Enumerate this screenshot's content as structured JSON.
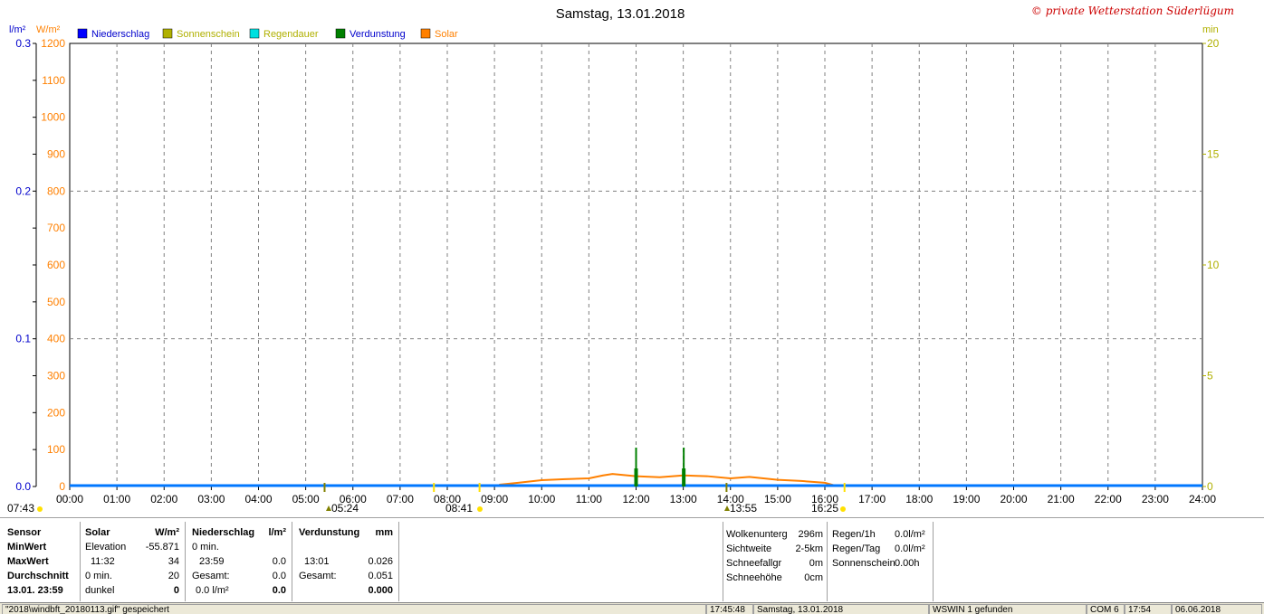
{
  "title": "Samstag, 13.01.2018",
  "watermark": "© private Wetterstation Süderlügum",
  "legend": [
    {
      "label": "Niederschlag",
      "color": "#0000ff",
      "text_color": "#0000cc"
    },
    {
      "label": "Sonnenschein",
      "color": "#b0b000",
      "text_color": "#b0b000"
    },
    {
      "label": "Regendauer",
      "color": "#00e0e0",
      "text_color": "#b0b000"
    },
    {
      "label": "Verdunstung",
      "color": "#008000",
      "text_color": "#0000cc"
    },
    {
      "label": "Solar",
      "color": "#ff8000",
      "text_color": "#ff8000"
    }
  ],
  "chart_data": {
    "type": "line",
    "x_unit": "time",
    "x_ticks": [
      "00:00",
      "01:00",
      "02:00",
      "03:00",
      "04:00",
      "05:00",
      "06:00",
      "07:00",
      "08:00",
      "09:00",
      "10:00",
      "11:00",
      "12:00",
      "13:00",
      "14:00",
      "15:00",
      "16:00",
      "17:00",
      "18:00",
      "19:00",
      "20:00",
      "21:00",
      "22:00",
      "23:00",
      "24:00"
    ],
    "axes": {
      "left_rain": {
        "unit": "l/m²",
        "ticks": [
          "0.0",
          "0.1",
          "0.2",
          "0.3"
        ],
        "range": [
          0,
          0.3
        ]
      },
      "left_solar": {
        "unit": "W/m²",
        "ticks": [
          "0",
          "100",
          "200",
          "300",
          "400",
          "500",
          "600",
          "700",
          "800",
          "900",
          "1000",
          "1100",
          "1200"
        ],
        "range": [
          0,
          1200
        ]
      },
      "right_minutes": {
        "unit": "min",
        "ticks": [
          "0",
          "5",
          "10",
          "15",
          "20"
        ],
        "range": [
          0,
          20
        ]
      }
    },
    "series": [
      {
        "name": "Solar",
        "color": "#ff8000",
        "x": [
          9.1,
          9.5,
          10.0,
          10.5,
          11.0,
          11.3,
          11.5,
          12.0,
          12.5,
          13.0,
          13.5,
          14.0,
          14.4,
          15.0,
          15.5,
          16.0,
          16.2
        ],
        "y": [
          5,
          10,
          17,
          20,
          22,
          30,
          34,
          28,
          25,
          30,
          28,
          22,
          26,
          18,
          15,
          10,
          3
        ]
      },
      {
        "name": "Niederschlag",
        "color": "#0077ff",
        "x": [
          0,
          24
        ],
        "y": [
          0,
          0
        ]
      },
      {
        "name": "Verdunstung",
        "color": "#008000",
        "bars": [
          {
            "x": 12.0,
            "y": 0.026
          },
          {
            "x": 13.01,
            "y": 0.026
          }
        ]
      }
    ],
    "markers": [
      {
        "time": "07:43",
        "color": "#ffe000"
      },
      {
        "time": "05:24",
        "color": "#808000"
      },
      {
        "time": "08:41",
        "color": "#ffe000"
      },
      {
        "time": "13:55",
        "color": "#808000"
      },
      {
        "time": "16:25",
        "color": "#ffe000"
      }
    ]
  },
  "table": {
    "sensor": {
      "head": "Sensor",
      "rows": [
        "MinWert",
        "MaxWert",
        "Durchschnitt",
        "13.01.  23:59"
      ]
    },
    "solar": {
      "head": "Solar",
      "unit": "W/m²",
      "rows": [
        [
          "Elevation",
          "-55.871"
        ],
        [
          "11:32",
          "34"
        ],
        [
          "0 min.",
          "20"
        ],
        [
          "dunkel",
          "0"
        ]
      ]
    },
    "rain": {
      "head": "Niederschlag",
      "unit": "l/m²",
      "rows": [
        [
          "0 min.",
          ""
        ],
        [
          "23:59",
          "0.0"
        ],
        [
          "Gesamt:",
          "0.0"
        ],
        [
          "0.0 l/m²",
          "0.0"
        ]
      ]
    },
    "evap": {
      "head": "Verdunstung",
      "unit": "mm",
      "rows": [
        [
          "",
          ""
        ],
        [
          "13:01",
          "0.026"
        ],
        [
          "Gesamt:",
          "0.051"
        ],
        [
          "",
          "0.000"
        ]
      ]
    },
    "clouds": [
      [
        "Wolkenunterg",
        "296m"
      ],
      [
        "Sichtweite",
        "2-5km"
      ],
      [
        "Schneefallgr",
        "0m"
      ],
      [
        "Schneehöhe",
        "0cm"
      ]
    ],
    "rainstats": [
      [
        "Regen/1h",
        "0.0l/m²"
      ],
      [
        "Regen/Tag",
        "0.0l/m²"
      ],
      [
        "Sonnenschein",
        "0.00h"
      ]
    ]
  },
  "status": {
    "file": "\"2018\\windbft_20180113.gif\" gespeichert",
    "time": "17:45:48",
    "date": "Samstag, 13.01.2018",
    "found": "WSWIN 1 gefunden",
    "com": "COM 6",
    "clock": "17:54",
    "day": "06.06.2018"
  }
}
